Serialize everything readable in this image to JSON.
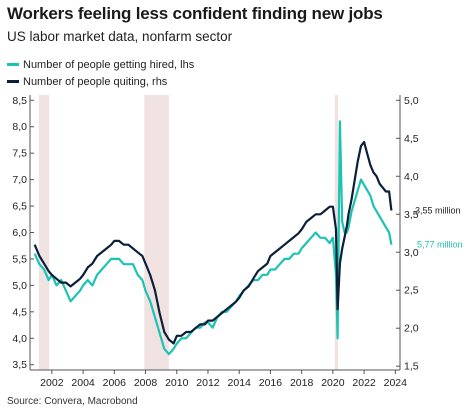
{
  "title": "Workers feeling less confident finding new jobs",
  "subtitle": "US labor market data, nonfarm sector",
  "source": "Source: Convera, Macrobond",
  "colors": {
    "hired": "#1cc3b2",
    "quits": "#0b1f3a",
    "recession": "#f1e2e2",
    "axis": "#555555"
  },
  "chart_data": {
    "type": "line",
    "left_axis": {
      "ylim": [
        3.4,
        8.6
      ],
      "ticks": [
        "3,5",
        "4,0",
        "4,5",
        "5,0",
        "5,5",
        "6,0",
        "6,5",
        "7,0",
        "7,5",
        "8,0",
        "8,5"
      ],
      "tick_values": [
        3.5,
        4.0,
        4.5,
        5.0,
        5.5,
        6.0,
        6.5,
        7.0,
        7.5,
        8.0,
        8.5
      ]
    },
    "right_axis": {
      "ylim": [
        1.45,
        5.07
      ],
      "ticks": [
        "1,5",
        "2,0",
        "2,5",
        "3,0",
        "3,5",
        "4,0",
        "4,5",
        "5,0"
      ],
      "tick_values": [
        1.5,
        2.0,
        2.5,
        3.0,
        3.5,
        4.0,
        4.5,
        5.0
      ]
    },
    "x_axis": {
      "xlim": [
        2000.6,
        2024.3
      ],
      "ticks": [
        "2002",
        "2004",
        "2006",
        "2008",
        "2010",
        "2012",
        "2014",
        "2016",
        "2018",
        "2020",
        "2022",
        "2024"
      ],
      "tick_values": [
        2002,
        2004,
        2006,
        2008,
        2010,
        2012,
        2014,
        2016,
        2018,
        2020,
        2022,
        2024
      ]
    },
    "recessions": [
      [
        2001.17,
        2001.83
      ],
      [
        2007.92,
        2009.5
      ],
      [
        2020.12,
        2020.33
      ]
    ],
    "series": [
      {
        "name": "Number of people getting hired, lhs",
        "axis": "left",
        "end_label": "5,77 million",
        "x": [
          2000.9,
          2001.2,
          2001.5,
          2001.8,
          2002.0,
          2002.3,
          2002.6,
          2002.9,
          2003.2,
          2003.5,
          2003.8,
          2004.0,
          2004.3,
          2004.6,
          2004.9,
          2005.2,
          2005.5,
          2005.8,
          2006.0,
          2006.3,
          2006.6,
          2006.9,
          2007.2,
          2007.5,
          2007.8,
          2008.0,
          2008.3,
          2008.6,
          2008.9,
          2009.2,
          2009.5,
          2009.8,
          2010.0,
          2010.3,
          2010.6,
          2010.9,
          2011.2,
          2011.5,
          2011.8,
          2012.0,
          2012.3,
          2012.6,
          2012.9,
          2013.2,
          2013.5,
          2013.8,
          2014.0,
          2014.3,
          2014.6,
          2014.9,
          2015.2,
          2015.5,
          2015.8,
          2016.0,
          2016.3,
          2016.6,
          2016.9,
          2017.2,
          2017.5,
          2017.8,
          2018.0,
          2018.3,
          2018.6,
          2018.9,
          2019.2,
          2019.5,
          2019.8,
          2020.0,
          2020.2,
          2020.3,
          2020.45,
          2020.6,
          2020.75,
          2020.9,
          2021.0,
          2021.2,
          2021.4,
          2021.6,
          2021.8,
          2022.0,
          2022.2,
          2022.4,
          2022.6,
          2022.8,
          2023.0,
          2023.2,
          2023.4,
          2023.6,
          2023.75
        ],
        "y": [
          5.6,
          5.4,
          5.3,
          5.1,
          5.2,
          5.0,
          5.1,
          4.9,
          4.7,
          4.8,
          4.9,
          5.0,
          5.1,
          5.0,
          5.2,
          5.3,
          5.4,
          5.5,
          5.5,
          5.5,
          5.4,
          5.4,
          5.4,
          5.2,
          5.1,
          4.9,
          4.7,
          4.4,
          4.1,
          3.8,
          3.7,
          3.8,
          3.9,
          4.0,
          4.0,
          4.1,
          4.2,
          4.2,
          4.3,
          4.3,
          4.2,
          4.4,
          4.5,
          4.5,
          4.6,
          4.7,
          4.8,
          4.9,
          5.0,
          5.1,
          5.1,
          5.2,
          5.2,
          5.3,
          5.3,
          5.4,
          5.5,
          5.5,
          5.6,
          5.6,
          5.7,
          5.8,
          5.9,
          6.0,
          5.9,
          5.9,
          5.8,
          5.9,
          5.2,
          4.0,
          8.1,
          6.2,
          6.0,
          6.0,
          6.1,
          6.4,
          6.6,
          6.8,
          7.0,
          6.9,
          6.8,
          6.7,
          6.5,
          6.4,
          6.3,
          6.2,
          6.1,
          6.0,
          5.77
        ]
      },
      {
        "name": "Number of people quiting, rhs",
        "axis": "right",
        "end_label": "3,55 million",
        "x": [
          2000.9,
          2001.2,
          2001.5,
          2001.8,
          2002.0,
          2002.3,
          2002.6,
          2002.9,
          2003.2,
          2003.5,
          2003.8,
          2004.0,
          2004.3,
          2004.6,
          2004.9,
          2005.2,
          2005.5,
          2005.8,
          2006.0,
          2006.3,
          2006.6,
          2006.9,
          2007.2,
          2007.5,
          2007.8,
          2008.0,
          2008.3,
          2008.6,
          2008.9,
          2009.2,
          2009.5,
          2009.8,
          2010.0,
          2010.3,
          2010.6,
          2010.9,
          2011.2,
          2011.5,
          2011.8,
          2012.0,
          2012.3,
          2012.6,
          2012.9,
          2013.2,
          2013.5,
          2013.8,
          2014.0,
          2014.3,
          2014.6,
          2014.9,
          2015.2,
          2015.5,
          2015.8,
          2016.0,
          2016.3,
          2016.6,
          2016.9,
          2017.2,
          2017.5,
          2017.8,
          2018.0,
          2018.3,
          2018.6,
          2018.9,
          2019.2,
          2019.5,
          2019.8,
          2020.0,
          2020.2,
          2020.3,
          2020.45,
          2020.6,
          2020.75,
          2020.9,
          2021.0,
          2021.2,
          2021.4,
          2021.6,
          2021.8,
          2022.0,
          2022.2,
          2022.4,
          2022.6,
          2022.8,
          2023.0,
          2023.2,
          2023.4,
          2023.6,
          2023.75
        ],
        "y": [
          3.1,
          2.95,
          2.85,
          2.75,
          2.7,
          2.65,
          2.6,
          2.6,
          2.55,
          2.6,
          2.65,
          2.7,
          2.8,
          2.85,
          2.95,
          3.0,
          3.05,
          3.1,
          3.15,
          3.15,
          3.1,
          3.1,
          3.05,
          3.0,
          2.95,
          2.85,
          2.7,
          2.5,
          2.2,
          1.95,
          1.85,
          1.8,
          1.9,
          1.9,
          1.95,
          1.95,
          2.0,
          2.05,
          2.05,
          2.1,
          2.1,
          2.15,
          2.2,
          2.25,
          2.3,
          2.35,
          2.4,
          2.5,
          2.55,
          2.65,
          2.75,
          2.8,
          2.85,
          2.95,
          3.0,
          3.05,
          3.1,
          3.15,
          3.2,
          3.25,
          3.3,
          3.4,
          3.45,
          3.5,
          3.5,
          3.55,
          3.6,
          3.6,
          3.3,
          2.25,
          2.85,
          3.05,
          3.2,
          3.35,
          3.5,
          3.7,
          3.95,
          4.2,
          4.4,
          4.45,
          4.3,
          4.15,
          4.05,
          4.0,
          3.9,
          3.85,
          3.8,
          3.8,
          3.55
        ]
      }
    ]
  }
}
